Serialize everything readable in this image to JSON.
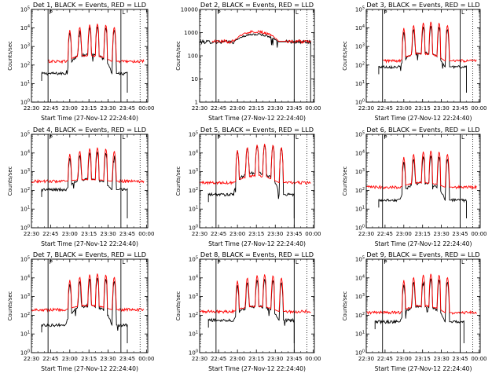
{
  "chart_data": [
    {
      "type": "line",
      "title": "Det 1, BLACK = Events, RED = LLD",
      "xlabel": "Start Time (27-Nov-12 22:24:40)",
      "ylabel": "Counts/sec",
      "yscale": "log",
      "ylim": [
        1,
        100000
      ],
      "xlim": [
        "22:30",
        "00:00"
      ],
      "x_ticks": [
        "22:30",
        "22:45",
        "23:00",
        "23:15",
        "23:30",
        "23:45",
        "00:00"
      ],
      "y_ticks": [
        "10^0",
        "10^1",
        "10^2",
        "10^3",
        "10^4",
        "10^5"
      ],
      "markers": [
        {
          "label": "P",
          "time": "22:43"
        },
        {
          "label": "L",
          "time": "23:40"
        }
      ],
      "series": [
        {
          "name": "BLACK",
          "color": "#000000",
          "start": "22:38",
          "end": "23:45",
          "base": 35,
          "high": 380,
          "peak_scale": 0.6
        },
        {
          "name": "RED",
          "color": "#ff0000",
          "start": "22:43",
          "end": "23:58",
          "base": 160,
          "high": 330,
          "peak_scale": 1.0
        }
      ]
    },
    {
      "type": "line",
      "title": "Det 2, BLACK = Events, RED = LLD",
      "xlabel": "Start Time (27-Nov-12 22:24:40)",
      "ylabel": "Counts/sec",
      "yscale": "log",
      "ylim": [
        1,
        10000
      ],
      "xlim": [
        "22:30",
        "00:00"
      ],
      "x_ticks": [
        "22:30",
        "22:45",
        "23:00",
        "23:15",
        "23:30",
        "23:45",
        "00:00"
      ],
      "y_ticks": [
        "1",
        "10",
        "100",
        "1000",
        "10000"
      ],
      "markers": [
        {
          "label": "P",
          "time": "22:43"
        },
        {
          "label": "L",
          "time": "23:45"
        }
      ],
      "series": [
        {
          "name": "BLACK",
          "color": "#000000",
          "start": "22:30",
          "end": "23:58",
          "base": 400,
          "high": 850,
          "peak_scale": 0
        },
        {
          "name": "RED",
          "color": "#ff0000",
          "start": "22:40",
          "end": "23:58",
          "base": 420,
          "high": 1100,
          "peak_scale": 0
        }
      ]
    },
    {
      "type": "line",
      "title": "Det 3, BLACK = Events, RED = LLD",
      "xlabel": "Start Time (27-Nov-12 22:24:40)",
      "ylabel": "Counts/sec",
      "yscale": "log",
      "ylim": [
        1,
        100000
      ],
      "xlim": [
        "22:30",
        "00:00"
      ],
      "x_ticks": [
        "22:30",
        "22:45",
        "23:00",
        "23:15",
        "23:30",
        "23:45",
        "00:00"
      ],
      "y_ticks": [
        "10^0",
        "10^1",
        "10^2",
        "10^3",
        "10^4",
        "10^5"
      ],
      "markers": [
        {
          "label": "P",
          "time": "22:43"
        },
        {
          "label": "L",
          "time": "23:45"
        }
      ],
      "series": [
        {
          "name": "BLACK",
          "color": "#000000",
          "start": "22:40",
          "end": "23:50",
          "base": 80,
          "high": 450,
          "peak_scale": 0.55
        },
        {
          "name": "RED",
          "color": "#ff0000",
          "start": "22:43",
          "end": "23:58",
          "base": 170,
          "high": 420,
          "peak_scale": 1.0
        }
      ]
    },
    {
      "type": "line",
      "title": "Det 4, BLACK = Events, RED = LLD",
      "xlabel": "Start Time (27-Nov-12 22:24:40)",
      "ylabel": "Counts/sec",
      "yscale": "log",
      "ylim": [
        1,
        100000
      ],
      "xlim": [
        "22:30",
        "00:00"
      ],
      "x_ticks": [
        "22:30",
        "22:45",
        "23:00",
        "23:15",
        "23:30",
        "23:45",
        "00:00"
      ],
      "y_ticks": [
        "10^0",
        "10^1",
        "10^2",
        "10^3",
        "10^4",
        "10^5"
      ],
      "markers": [
        {
          "label": "P",
          "time": "22:43"
        },
        {
          "label": "L",
          "time": "23:40"
        }
      ],
      "series": [
        {
          "name": "BLACK",
          "color": "#000000",
          "start": "22:38",
          "end": "23:45",
          "base": 110,
          "high": 400,
          "peak_scale": 0.55
        },
        {
          "name": "RED",
          "color": "#ff0000",
          "start": "22:30",
          "end": "23:58",
          "base": 310,
          "high": 380,
          "peak_scale": 1.0
        }
      ]
    },
    {
      "type": "line",
      "title": "Det 5, BLACK = Events, RED = LLD",
      "xlabel": "Start Time (27-Nov-12 22:24:40)",
      "ylabel": "Counts/sec",
      "yscale": "log",
      "ylim": [
        1,
        100000
      ],
      "xlim": [
        "22:30",
        "00:00"
      ],
      "x_ticks": [
        "22:30",
        "22:45",
        "23:00",
        "23:15",
        "23:30",
        "23:45",
        "00:00"
      ],
      "y_ticks": [
        "10^0",
        "10^1",
        "10^2",
        "10^3",
        "10^4",
        "10^5"
      ],
      "markers": [
        {
          "label": "P",
          "time": "22:43"
        },
        {
          "label": "L",
          "time": "23:45"
        }
      ],
      "series": [
        {
          "name": "BLACK",
          "color": "#000000",
          "start": "22:37",
          "end": "23:45",
          "base": 60,
          "high": 900,
          "peak_scale": 0.6
        },
        {
          "name": "RED",
          "color": "#ff0000",
          "start": "22:30",
          "end": "23:58",
          "base": 260,
          "high": 600,
          "peak_scale": 1.0
        }
      ]
    },
    {
      "type": "line",
      "title": "Det 6, BLACK = Events, RED = LLD",
      "xlabel": "Start Time (27-Nov-12 22:24:40)",
      "ylabel": "Counts/sec",
      "yscale": "log",
      "ylim": [
        1,
        100000
      ],
      "xlim": [
        "22:30",
        "00:00"
      ],
      "x_ticks": [
        "22:30",
        "22:45",
        "23:00",
        "23:15",
        "23:30",
        "23:45",
        "00:00"
      ],
      "y_ticks": [
        "10^0",
        "10^1",
        "10^2",
        "10^3",
        "10^4",
        "10^5"
      ],
      "markers": [
        {
          "label": "P",
          "time": "22:43"
        },
        {
          "label": "L",
          "time": "23:45"
        }
      ],
      "series": [
        {
          "name": "BLACK",
          "color": "#000000",
          "start": "22:40",
          "end": "23:50",
          "base": 30,
          "high": 250,
          "peak_scale": 0.55
        },
        {
          "name": "RED",
          "color": "#ff0000",
          "start": "22:30",
          "end": "23:58",
          "base": 150,
          "high": 260,
          "peak_scale": 1.0
        }
      ]
    },
    {
      "type": "line",
      "title": "Det 7, BLACK = Events, RED = LLD",
      "xlabel": "Start Time (27-Nov-12 22:24:40)",
      "ylabel": "Counts/sec",
      "yscale": "log",
      "ylim": [
        1,
        100000
      ],
      "xlim": [
        "22:30",
        "00:00"
      ],
      "x_ticks": [
        "22:30",
        "22:45",
        "23:00",
        "23:15",
        "23:30",
        "23:45",
        "00:00"
      ],
      "y_ticks": [
        "10^0",
        "10^1",
        "10^2",
        "10^3",
        "10^4",
        "10^5"
      ],
      "markers": [
        {
          "label": "P",
          "time": "22:43"
        },
        {
          "label": "L",
          "time": "23:40"
        }
      ],
      "series": [
        {
          "name": "BLACK",
          "color": "#000000",
          "start": "22:38",
          "end": "23:45",
          "base": 30,
          "high": 320,
          "peak_scale": 0.6
        },
        {
          "name": "RED",
          "color": "#ff0000",
          "start": "22:30",
          "end": "23:58",
          "base": 200,
          "high": 330,
          "peak_scale": 1.0
        }
      ]
    },
    {
      "type": "line",
      "title": "Det 8, BLACK = Events, RED = LLD",
      "xlabel": "Start Time (27-Nov-12 22:24:40)",
      "ylabel": "Counts/sec",
      "yscale": "log",
      "ylim": [
        1,
        100000
      ],
      "xlim": [
        "22:30",
        "00:00"
      ],
      "x_ticks": [
        "22:30",
        "22:45",
        "23:00",
        "23:15",
        "23:30",
        "23:45",
        "00:00"
      ],
      "y_ticks": [
        "10^0",
        "10^1",
        "10^2",
        "10^3",
        "10^4",
        "10^5"
      ],
      "markers": [
        {
          "label": "P",
          "time": "22:43"
        },
        {
          "label": "L",
          "time": "23:45"
        }
      ],
      "series": [
        {
          "name": "BLACK",
          "color": "#000000",
          "start": "22:37",
          "end": "23:45",
          "base": 55,
          "high": 300,
          "peak_scale": 0.55
        },
        {
          "name": "RED",
          "color": "#ff0000",
          "start": "22:30",
          "end": "23:58",
          "base": 160,
          "high": 300,
          "peak_scale": 1.0
        }
      ]
    },
    {
      "type": "line",
      "title": "Det 9, BLACK = Events, RED = LLD",
      "xlabel": "Start Time (27-Nov-12 22:24:40)",
      "ylabel": "Counts/sec",
      "yscale": "log",
      "ylim": [
        1,
        100000
      ],
      "xlim": [
        "22:30",
        "00:00"
      ],
      "x_ticks": [
        "22:30",
        "22:45",
        "23:00",
        "23:15",
        "23:30",
        "23:45",
        "00:00"
      ],
      "y_ticks": [
        "10^0",
        "10^1",
        "10^2",
        "10^3",
        "10^4",
        "10^5"
      ],
      "markers": [
        {
          "label": "P",
          "time": "22:43"
        },
        {
          "label": "L",
          "time": "23:45"
        }
      ],
      "series": [
        {
          "name": "BLACK",
          "color": "#000000",
          "start": "22:37",
          "end": "23:48",
          "base": 45,
          "high": 320,
          "peak_scale": 0.55
        },
        {
          "name": "RED",
          "color": "#ff0000",
          "start": "22:30",
          "end": "23:58",
          "base": 140,
          "high": 320,
          "peak_scale": 1.0
        }
      ]
    }
  ]
}
